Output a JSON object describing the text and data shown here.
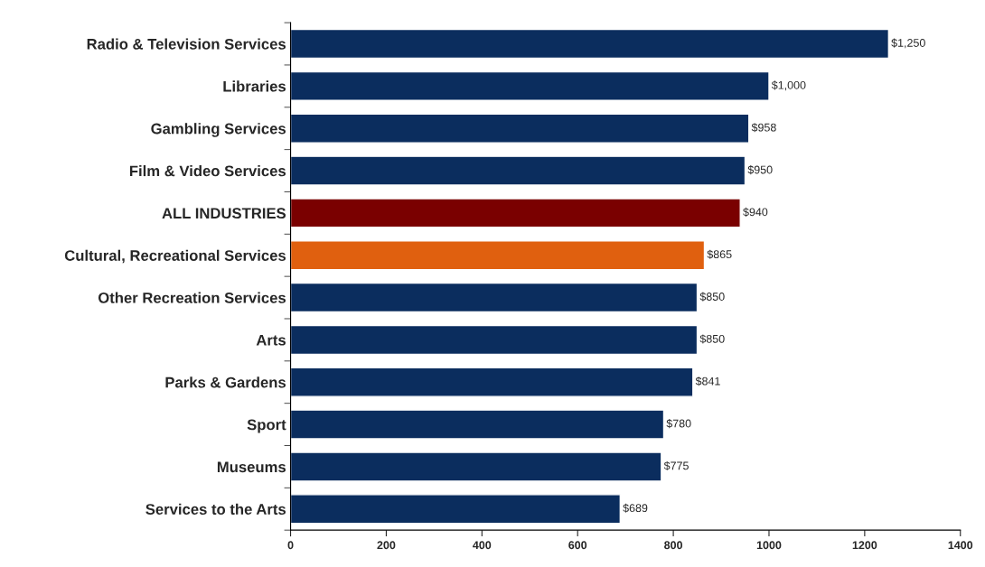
{
  "chart_data": {
    "type": "bar",
    "orientation": "horizontal",
    "categories": [
      "Radio & Television Services",
      "Libraries",
      "Gambling Services",
      "Film & Video Services",
      "ALL INDUSTRIES",
      "Cultural, Recreational Services",
      "Other Recreation Services",
      "Arts",
      "Parks & Gardens",
      "Sport",
      "Museums",
      "Services to the Arts"
    ],
    "values": [
      1250,
      1000,
      958,
      950,
      940,
      865,
      850,
      850,
      841,
      780,
      775,
      689
    ],
    "colors": [
      "#0b2d5e",
      "#0b2d5e",
      "#0b2d5e",
      "#0b2d5e",
      "#7a0000",
      "#e0600f",
      "#0b2d5e",
      "#0b2d5e",
      "#0b2d5e",
      "#0b2d5e",
      "#0b2d5e",
      "#0b2d5e"
    ],
    "value_labels": [
      "$1,250",
      "$1,000",
      "$958",
      "$950",
      "$940",
      "$865",
      "$850",
      "$850",
      "$841",
      "$780",
      "$775",
      "$689"
    ],
    "xlim": [
      0,
      1400
    ],
    "xticks": [
      0,
      200,
      400,
      600,
      800,
      1000,
      1200,
      1400
    ],
    "grid": false
  }
}
